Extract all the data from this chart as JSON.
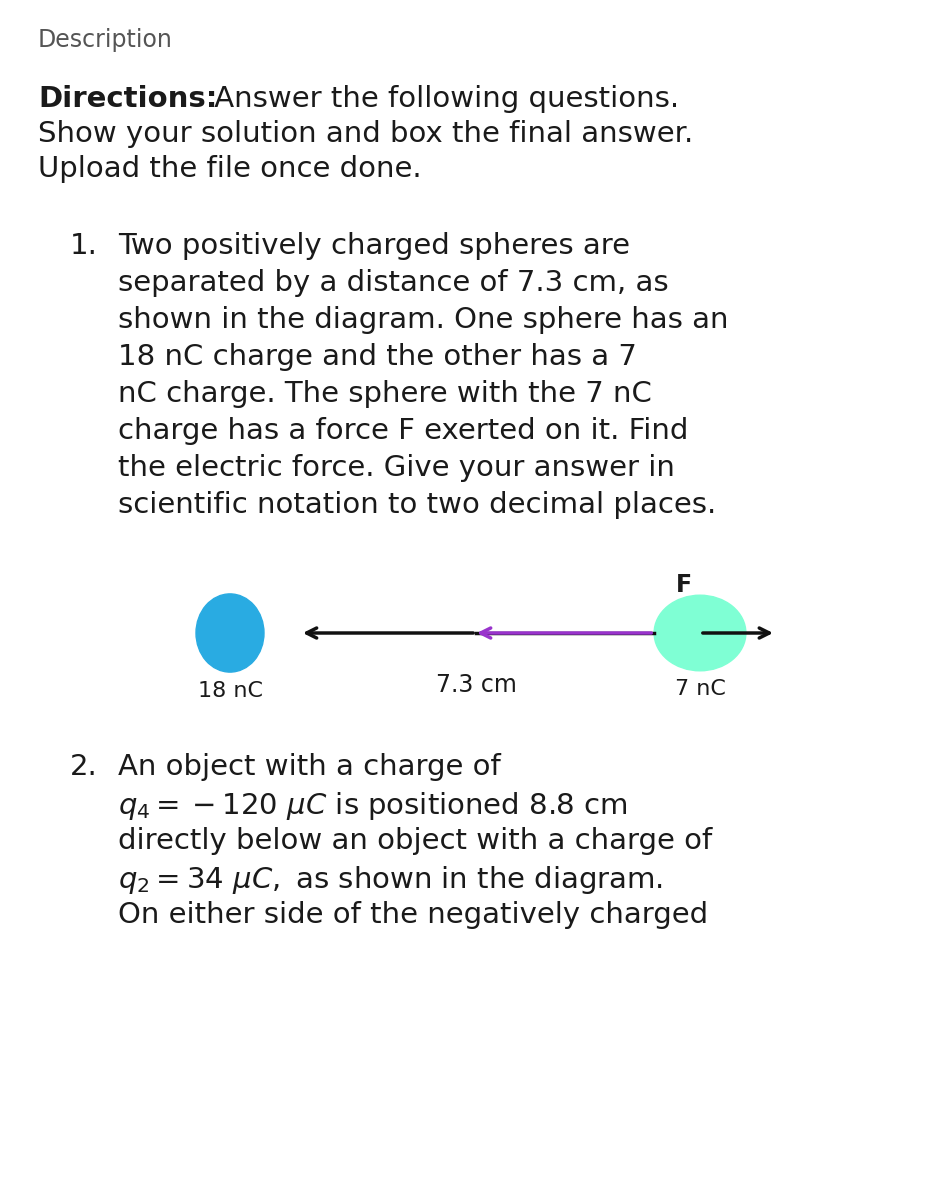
{
  "background_color": "#ffffff",
  "text_color": "#1a1a1a",
  "gray_color": "#555555",
  "description_label": "Description",
  "directions_bold": "Directions:",
  "dir_line1": " Answer the following questions.",
  "dir_line2": "Show your solution and box the final answer.",
  "dir_line3": "Upload the file once done.",
  "q1_number": "1.",
  "q1_lines": [
    "Two positively charged spheres are",
    "separated by a distance of 7.3 cm, as",
    "shown in the diagram. One sphere has an",
    "18 nC charge and the other has a 7",
    "nC charge. The sphere with the 7 nC",
    "charge has a force F exerted on it. Find",
    "the electric force. Give your answer in",
    "scientific notation to two decimal places."
  ],
  "q2_number": "2.",
  "q2_line1": "An object with a charge of",
  "q2_line2a": "$q_4 = -120\\ \\mu C$",
  "q2_line2b": " is positioned 8.8 cm",
  "q2_line3": "directly below an object with a charge of",
  "q2_line4a": "$q_2 = 34\\ \\mu C,$",
  "q2_line4b": " as shown in the diagram.",
  "q2_line5": "On either side of the negatively charged",
  "diagram": {
    "sphere_left_color": "#29ABE2",
    "sphere_right_color": "#7FFFD4",
    "sphere_left_label": "18 nC",
    "sphere_right_label": "7 nC",
    "distance_label": "7.3 cm",
    "force_label": "F",
    "arrow_black": "#111111",
    "arrow_purple": "#9933CC"
  }
}
